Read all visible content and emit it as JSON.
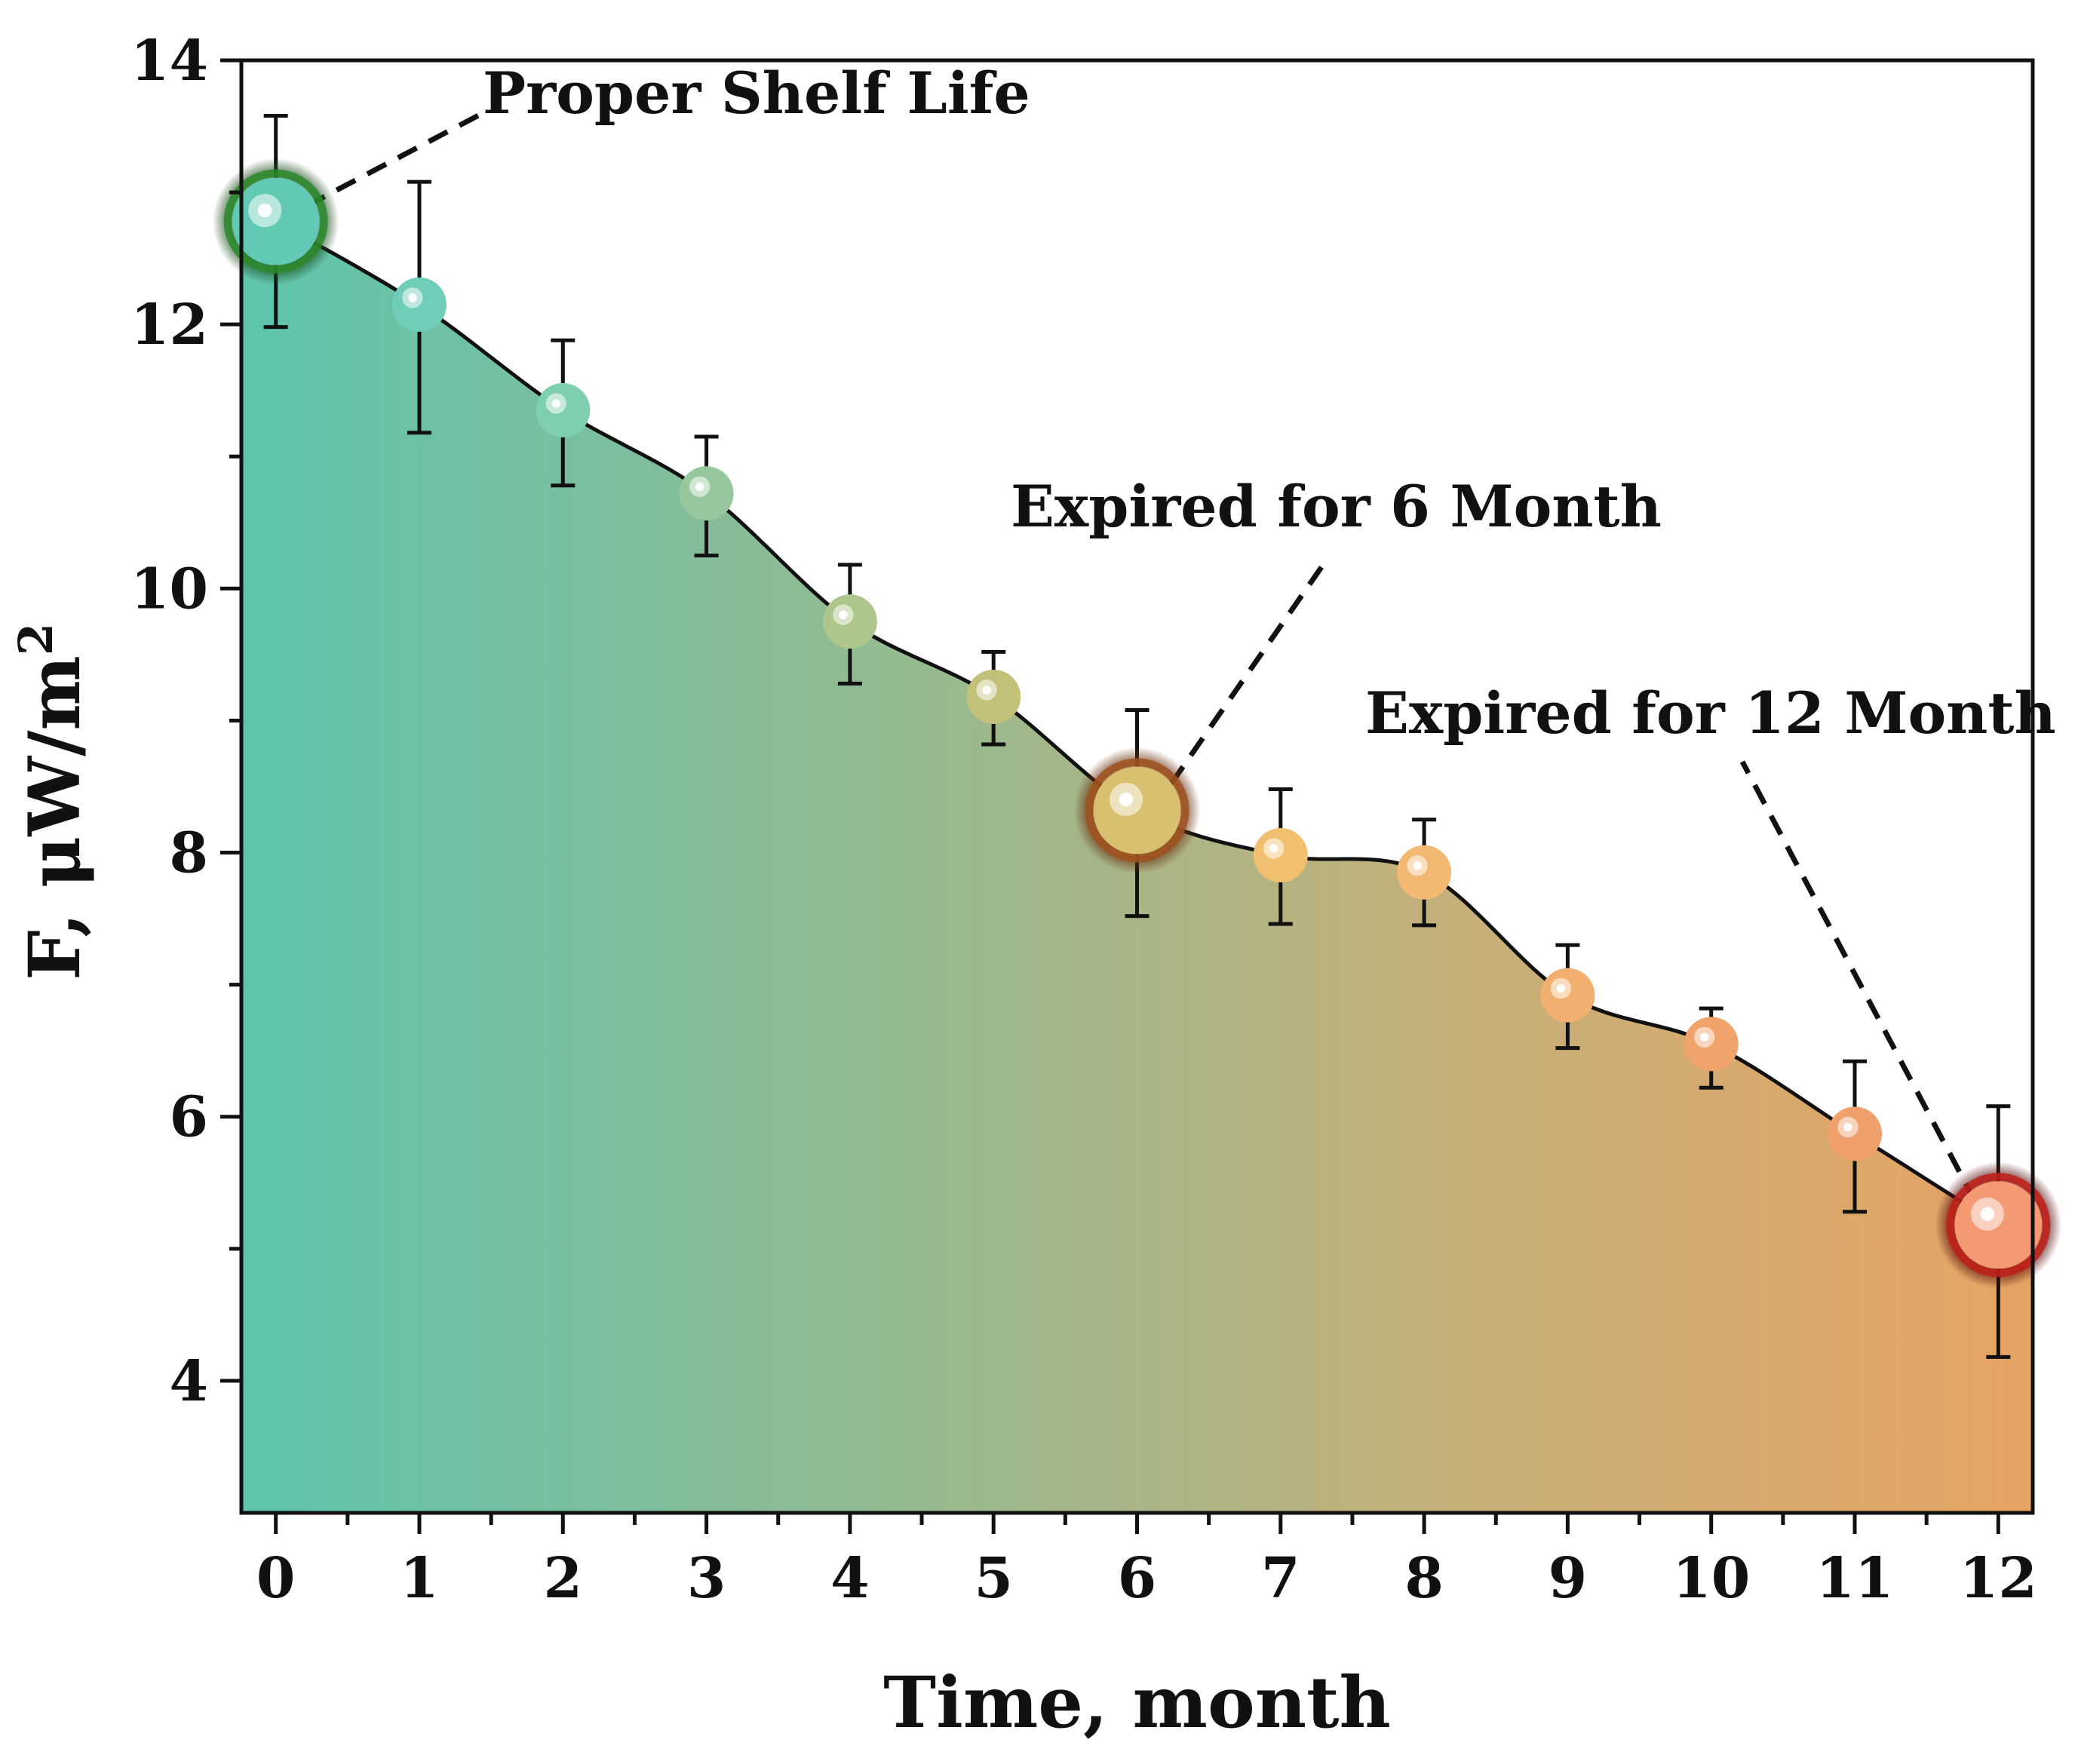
{
  "chart_data": {
    "type": "line",
    "title": "",
    "xlabel": "Time, month",
    "ylabel_main": "F, μW/m",
    "ylabel_sup": "2",
    "x": [
      0,
      1,
      2,
      3,
      4,
      5,
      6,
      7,
      8,
      9,
      10,
      11,
      12
    ],
    "y": [
      12.78,
      12.15,
      11.35,
      10.72,
      9.75,
      9.18,
      8.32,
      7.98,
      7.85,
      6.92,
      6.55,
      5.87,
      5.18
    ],
    "err_upper": [
      13.58,
      13.08,
      11.88,
      11.15,
      10.18,
      9.52,
      9.08,
      8.48,
      8.25,
      7.3,
      6.82,
      6.42,
      6.08
    ],
    "err_lower": [
      11.98,
      11.18,
      10.78,
      10.25,
      9.28,
      8.82,
      7.52,
      7.46,
      7.45,
      6.52,
      6.22,
      5.28,
      4.18
    ],
    "xlim": [
      -0.24,
      12.24
    ],
    "ylim": [
      3,
      14
    ],
    "xticks": [
      0,
      1,
      2,
      3,
      4,
      5,
      6,
      7,
      8,
      9,
      10,
      11,
      12
    ],
    "xtick_labels": [
      "0",
      "1",
      "2",
      "3",
      "4",
      "5",
      "6",
      "7",
      "8",
      "9",
      "10",
      "11",
      "12"
    ],
    "yticks": [
      4,
      6,
      8,
      10,
      12,
      14
    ],
    "ytick_labels": [
      "4",
      "6",
      "8",
      "10",
      "12",
      "14"
    ],
    "grid": false,
    "fill_gradient": [
      "#5ec4ad",
      "#8fbb93",
      "#c3b07a",
      "#e7a463"
    ],
    "marker_colors": [
      "#62c9b5",
      "#6fcdb9",
      "#7ecfae",
      "#97c79f",
      "#adc68b",
      "#c3c07a",
      "#d8c070",
      "#f0c070",
      "#f3b872",
      "#f1b070",
      "#f0a36a",
      "#f0a06a",
      "#f39a73"
    ],
    "highlight_points": [
      {
        "x": 0,
        "label": "Proper Shelf Life",
        "glow": "#2b8a2b"
      },
      {
        "x": 6,
        "label": "Expired for 6 Month",
        "glow": "#a0521e"
      },
      {
        "x": 12,
        "label": "Expired for 12 Month",
        "glow": "#c0201a"
      }
    ]
  }
}
